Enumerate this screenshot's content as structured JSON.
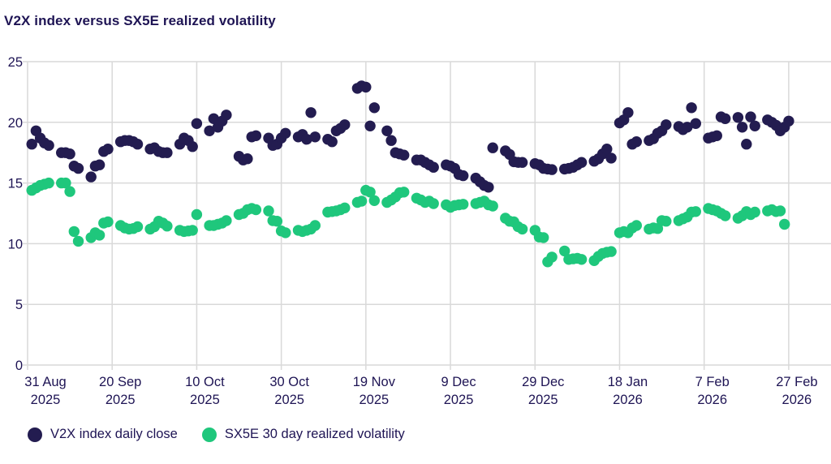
{
  "title": "V2X index versus SX5E realized volatility",
  "colors": {
    "v2x": "#231c50",
    "sx5e": "#1fc77c",
    "text": "#1e1454",
    "grid": "#d9d9d9",
    "background": "#ffffff"
  },
  "legend": [
    {
      "label": "V2X index daily close",
      "color_key": "v2x"
    },
    {
      "label": "SX5E 30 day realized volatility",
      "color_key": "sx5e"
    }
  ],
  "chart_data": {
    "type": "scatter",
    "title": "V2X index versus SX5E realized volatility",
    "xlabel": "",
    "ylabel": "",
    "x_unit": "days since 31 Aug 2025",
    "xlim": [
      0,
      190
    ],
    "ylim": [
      0,
      25
    ],
    "grid": true,
    "legend_position": "bottom",
    "y_ticks": [
      {
        "value": 0,
        "label": "0"
      },
      {
        "value": 5,
        "label": "5"
      },
      {
        "value": 10,
        "label": "10"
      },
      {
        "value": 15,
        "label": "15"
      },
      {
        "value": 20,
        "label": "20"
      },
      {
        "value": 25,
        "label": "25"
      }
    ],
    "x_ticks": [
      {
        "day": 0,
        "line1": "31 Aug",
        "line2": "2025"
      },
      {
        "day": 20,
        "line1": "20 Sep",
        "line2": "2025"
      },
      {
        "day": 40,
        "line1": "10 Oct",
        "line2": "2025"
      },
      {
        "day": 60,
        "line1": "30 Oct",
        "line2": "2025"
      },
      {
        "day": 80,
        "line1": "19 Nov",
        "line2": "2025"
      },
      {
        "day": 100,
        "line1": "9 Dec",
        "line2": "2025"
      },
      {
        "day": 120,
        "line1": "29 Dec",
        "line2": "2025"
      },
      {
        "day": 140,
        "line1": "18 Jan",
        "line2": "2026"
      },
      {
        "day": 160,
        "line1": "7 Feb",
        "line2": "2026"
      },
      {
        "day": 180,
        "line1": "27 Feb",
        "line2": "2026"
      }
    ],
    "series": [
      {
        "name": "V2X index daily close",
        "color_key": "v2x",
        "points": [
          [
            1,
            18.2
          ],
          [
            2,
            19.3
          ],
          [
            3,
            18.7
          ],
          [
            4,
            18.3
          ],
          [
            5,
            18.1
          ],
          [
            8,
            17.5
          ],
          [
            9,
            17.5
          ],
          [
            10,
            17.4
          ],
          [
            11,
            16.4
          ],
          [
            12,
            16.2
          ],
          [
            15,
            15.5
          ],
          [
            16,
            16.4
          ],
          [
            17,
            16.5
          ],
          [
            18,
            17.6
          ],
          [
            19,
            17.8
          ],
          [
            22,
            18.4
          ],
          [
            23,
            18.5
          ],
          [
            24,
            18.5
          ],
          [
            25,
            18.4
          ],
          [
            26,
            18.2
          ],
          [
            29,
            17.8
          ],
          [
            30,
            17.9
          ],
          [
            31,
            17.6
          ],
          [
            32,
            17.5
          ],
          [
            33,
            17.5
          ],
          [
            36,
            18.2
          ],
          [
            37,
            18.7
          ],
          [
            38,
            18.5
          ],
          [
            39,
            18.0
          ],
          [
            40,
            19.9
          ],
          [
            43,
            19.3
          ],
          [
            44,
            20.3
          ],
          [
            45,
            19.6
          ],
          [
            46,
            20.1
          ],
          [
            47,
            20.6
          ],
          [
            50,
            17.2
          ],
          [
            51,
            16.9
          ],
          [
            52,
            17.0
          ],
          [
            53,
            18.8
          ],
          [
            54,
            18.9
          ],
          [
            57,
            18.7
          ],
          [
            58,
            18.1
          ],
          [
            59,
            18.2
          ],
          [
            60,
            18.7
          ],
          [
            61,
            19.1
          ],
          [
            64,
            18.8
          ],
          [
            65,
            19.0
          ],
          [
            66,
            18.6
          ],
          [
            67,
            20.8
          ],
          [
            68,
            18.8
          ],
          [
            71,
            18.6
          ],
          [
            72,
            18.4
          ],
          [
            73,
            19.3
          ],
          [
            74,
            19.5
          ],
          [
            75,
            19.8
          ],
          [
            78,
            22.8
          ],
          [
            79,
            23.0
          ],
          [
            80,
            22.9
          ],
          [
            81,
            19.7
          ],
          [
            82,
            21.2
          ],
          [
            85,
            19.3
          ],
          [
            86,
            18.5
          ],
          [
            87,
            17.5
          ],
          [
            88,
            17.4
          ],
          [
            89,
            17.3
          ],
          [
            92,
            16.9
          ],
          [
            93,
            16.9
          ],
          [
            94,
            16.7
          ],
          [
            95,
            16.5
          ],
          [
            96,
            16.3
          ],
          [
            99,
            16.5
          ],
          [
            100,
            16.4
          ],
          [
            101,
            16.2
          ],
          [
            102,
            15.7
          ],
          [
            103,
            15.6
          ],
          [
            106,
            15.4
          ],
          [
            107,
            15.1
          ],
          [
            108,
            14.8
          ],
          [
            109,
            14.65
          ],
          [
            110,
            17.9
          ],
          [
            113,
            17.65
          ],
          [
            114,
            17.35
          ],
          [
            115,
            16.75
          ],
          [
            116,
            16.7
          ],
          [
            117,
            16.7
          ],
          [
            120,
            16.6
          ],
          [
            121,
            16.5
          ],
          [
            122,
            16.2
          ],
          [
            123,
            16.15
          ],
          [
            124,
            16.1
          ],
          [
            127,
            16.15
          ],
          [
            128,
            16.2
          ],
          [
            129,
            16.3
          ],
          [
            130,
            16.5
          ],
          [
            131,
            16.7
          ],
          [
            134,
            16.8
          ],
          [
            135,
            17.0
          ],
          [
            136,
            17.4
          ],
          [
            137,
            17.8
          ],
          [
            138,
            17.05
          ],
          [
            140,
            19.95
          ],
          [
            141,
            20.2
          ],
          [
            142,
            20.8
          ],
          [
            143,
            18.2
          ],
          [
            144,
            18.4
          ],
          [
            147,
            18.5
          ],
          [
            148,
            18.65
          ],
          [
            149,
            19.1
          ],
          [
            150,
            19.3
          ],
          [
            151,
            19.8
          ],
          [
            154,
            19.65
          ],
          [
            155,
            19.4
          ],
          [
            156,
            19.6
          ],
          [
            157,
            21.2
          ],
          [
            158,
            19.9
          ],
          [
            161,
            18.7
          ],
          [
            162,
            18.8
          ],
          [
            163,
            18.9
          ],
          [
            164,
            20.45
          ],
          [
            165,
            20.3
          ],
          [
            168,
            20.4
          ],
          [
            169,
            19.6
          ],
          [
            170,
            18.2
          ],
          [
            171,
            20.45
          ],
          [
            172,
            19.7
          ],
          [
            175,
            20.2
          ],
          [
            176,
            20.0
          ],
          [
            177,
            19.75
          ],
          [
            178,
            19.3
          ],
          [
            179,
            19.6
          ],
          [
            180,
            20.1
          ]
        ]
      },
      {
        "name": "SX5E 30 day realized volatility",
        "color_key": "sx5e",
        "points": [
          [
            1,
            14.4
          ],
          [
            2,
            14.6
          ],
          [
            3,
            14.8
          ],
          [
            4,
            14.9
          ],
          [
            5,
            15.0
          ],
          [
            8,
            15.0
          ],
          [
            9,
            15.0
          ],
          [
            10,
            14.3
          ],
          [
            11,
            11.0
          ],
          [
            12,
            10.2
          ],
          [
            15,
            10.5
          ],
          [
            16,
            10.9
          ],
          [
            17,
            10.7
          ],
          [
            18,
            11.7
          ],
          [
            19,
            11.8
          ],
          [
            22,
            11.5
          ],
          [
            23,
            11.3
          ],
          [
            24,
            11.2
          ],
          [
            25,
            11.25
          ],
          [
            26,
            11.4
          ],
          [
            29,
            11.2
          ],
          [
            30,
            11.4
          ],
          [
            31,
            11.85
          ],
          [
            32,
            11.7
          ],
          [
            33,
            11.45
          ],
          [
            36,
            11.1
          ],
          [
            37,
            11.0
          ],
          [
            38,
            11.05
          ],
          [
            39,
            11.1
          ],
          [
            40,
            12.4
          ],
          [
            43,
            11.5
          ],
          [
            44,
            11.5
          ],
          [
            45,
            11.6
          ],
          [
            46,
            11.7
          ],
          [
            47,
            11.9
          ],
          [
            50,
            12.4
          ],
          [
            51,
            12.5
          ],
          [
            52,
            12.8
          ],
          [
            53,
            12.9
          ],
          [
            54,
            12.8
          ],
          [
            57,
            12.7
          ],
          [
            58,
            11.9
          ],
          [
            59,
            11.85
          ],
          [
            60,
            11.05
          ],
          [
            61,
            10.9
          ],
          [
            64,
            11.1
          ],
          [
            65,
            11.0
          ],
          [
            66,
            11.1
          ],
          [
            67,
            11.2
          ],
          [
            68,
            11.5
          ],
          [
            71,
            12.6
          ],
          [
            72,
            12.65
          ],
          [
            73,
            12.7
          ],
          [
            74,
            12.8
          ],
          [
            75,
            12.95
          ],
          [
            78,
            13.4
          ],
          [
            79,
            13.5
          ],
          [
            80,
            14.4
          ],
          [
            81,
            14.25
          ],
          [
            82,
            13.55
          ],
          [
            85,
            13.4
          ],
          [
            86,
            13.6
          ],
          [
            87,
            13.85
          ],
          [
            88,
            14.2
          ],
          [
            89,
            14.25
          ],
          [
            92,
            13.75
          ],
          [
            93,
            13.6
          ],
          [
            94,
            13.4
          ],
          [
            95,
            13.5
          ],
          [
            96,
            13.3
          ],
          [
            99,
            13.2
          ],
          [
            100,
            13.0
          ],
          [
            101,
            13.15
          ],
          [
            102,
            13.2
          ],
          [
            103,
            13.25
          ],
          [
            106,
            13.3
          ],
          [
            107,
            13.4
          ],
          [
            108,
            13.5
          ],
          [
            109,
            13.2
          ],
          [
            110,
            13.1
          ],
          [
            113,
            12.1
          ],
          [
            114,
            11.85
          ],
          [
            115,
            11.8
          ],
          [
            116,
            11.4
          ],
          [
            117,
            11.2
          ],
          [
            120,
            11.1
          ],
          [
            121,
            10.55
          ],
          [
            122,
            10.5
          ],
          [
            123,
            8.5
          ],
          [
            124,
            8.9
          ],
          [
            127,
            9.4
          ],
          [
            128,
            8.7
          ],
          [
            129,
            8.75
          ],
          [
            130,
            8.8
          ],
          [
            131,
            8.7
          ],
          [
            134,
            8.6
          ],
          [
            135,
            8.95
          ],
          [
            136,
            9.2
          ],
          [
            137,
            9.3
          ],
          [
            138,
            9.35
          ],
          [
            140,
            10.9
          ],
          [
            141,
            11.0
          ],
          [
            142,
            10.9
          ],
          [
            143,
            11.3
          ],
          [
            144,
            11.5
          ],
          [
            147,
            11.2
          ],
          [
            148,
            11.3
          ],
          [
            149,
            11.25
          ],
          [
            150,
            11.9
          ],
          [
            151,
            11.85
          ],
          [
            154,
            11.9
          ],
          [
            155,
            12.05
          ],
          [
            156,
            12.2
          ],
          [
            157,
            12.6
          ],
          [
            158,
            12.65
          ],
          [
            161,
            12.9
          ],
          [
            162,
            12.8
          ],
          [
            163,
            12.7
          ],
          [
            164,
            12.5
          ],
          [
            165,
            12.3
          ],
          [
            168,
            12.1
          ],
          [
            169,
            12.3
          ],
          [
            170,
            12.65
          ],
          [
            171,
            12.4
          ],
          [
            172,
            12.6
          ],
          [
            175,
            12.7
          ],
          [
            176,
            12.8
          ],
          [
            177,
            12.65
          ],
          [
            178,
            12.7
          ],
          [
            179,
            11.6
          ]
        ]
      }
    ]
  }
}
